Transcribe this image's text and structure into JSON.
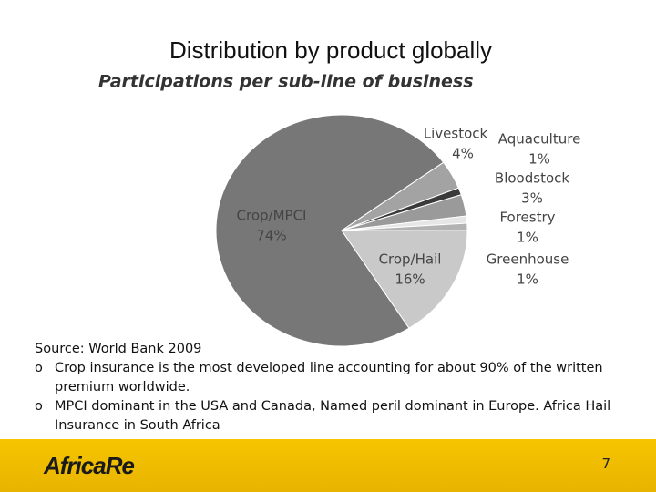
{
  "slide": {
    "title": "Distribution by product globally",
    "source": "Source: World Bank 2009",
    "bullets": [
      "Crop insurance is the most developed line accounting for about 90% of the written premium worldwide.",
      "MPCI dominant in the USA and Canada, Named peril dominant in Europe. Africa Hail Insurance in South Africa"
    ],
    "logo": "AfricaRe",
    "page_number": "7"
  },
  "chart_data": {
    "type": "pie",
    "title": "Participations per sub-line of business",
    "categories": [
      "Crop/Hail",
      "Crop/MPCI",
      "Livestock",
      "Aquaculture",
      "Bloodstock",
      "Forestry",
      "Greenhouse"
    ],
    "values": [
      16,
      74,
      4,
      1,
      3,
      1,
      1
    ],
    "value_labels": [
      "16%",
      "74%",
      "4%",
      "1%",
      "3%",
      "1%",
      "1%"
    ],
    "colors": [
      "#c9c9c9",
      "#777777",
      "#a3a3a3",
      "#3a3a3a",
      "#9a9a9a",
      "#e6e6e6",
      "#b3b3b3"
    ]
  }
}
